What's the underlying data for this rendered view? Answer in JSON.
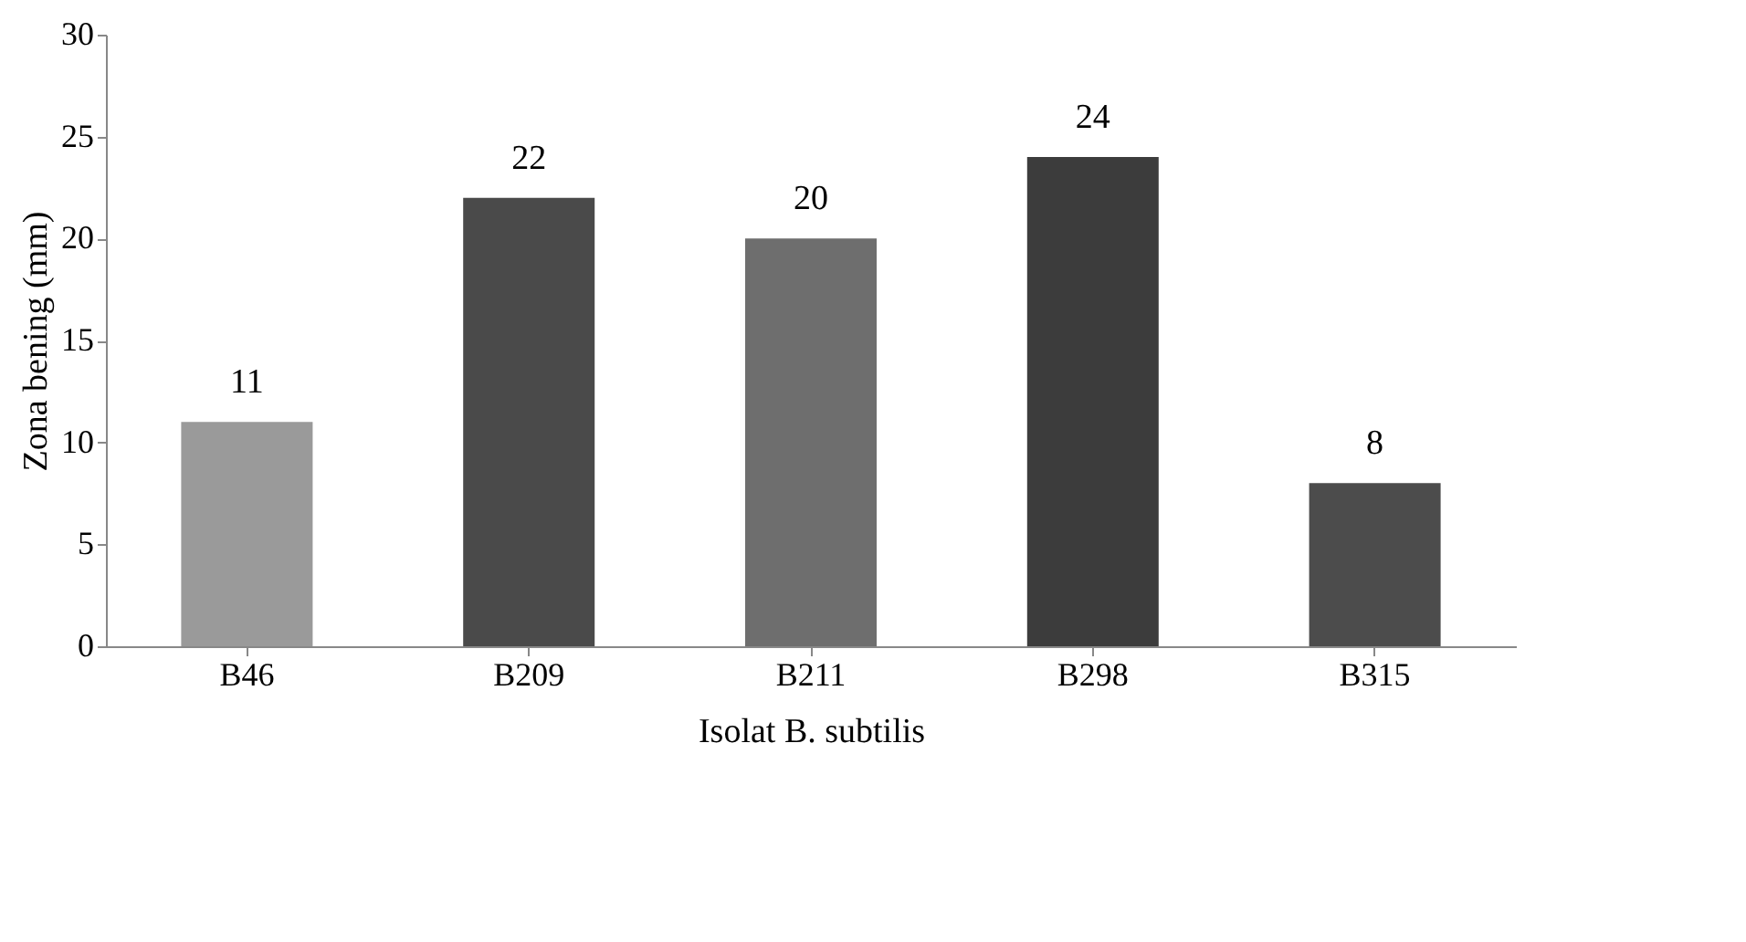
{
  "chart_data": {
    "type": "bar",
    "xlabel": "Isolat B. subtilis",
    "ylabel": "Zona bening (mm)",
    "categories": [
      "B46",
      "B209",
      "B211",
      "B298",
      "B315"
    ],
    "values": [
      11,
      22,
      20,
      24,
      8
    ],
    "colors": [
      "#9a9a9a",
      "#4a4a4a",
      "#6e6e6e",
      "#3c3c3c",
      "#4c4c4c"
    ],
    "ylim": [
      0,
      30
    ],
    "yticks": [
      0,
      5,
      10,
      15,
      20,
      25,
      30
    ],
    "grid": false,
    "data_labels": true
  }
}
